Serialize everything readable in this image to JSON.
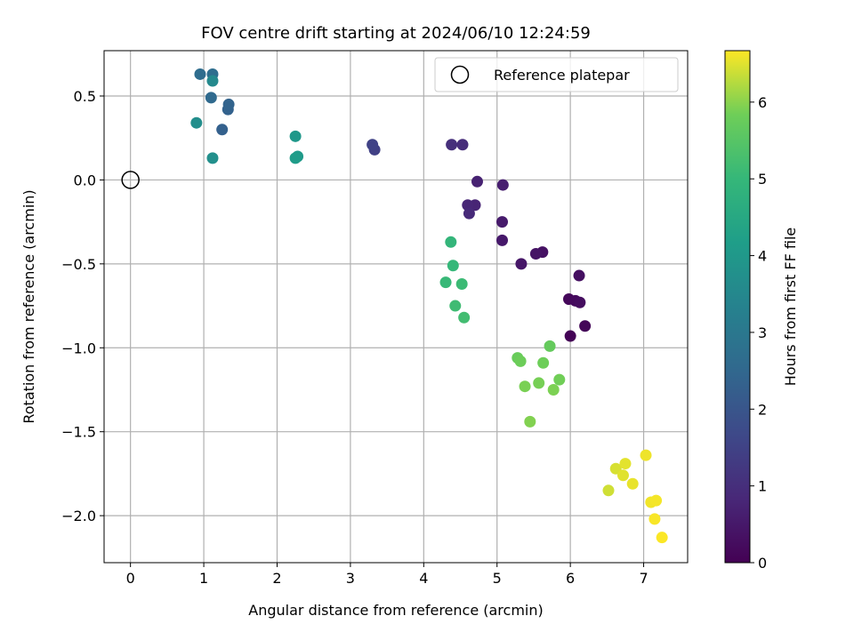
{
  "chart_data": {
    "type": "scatter",
    "title": "FOV centre drift starting at 2024/06/10 12:24:59",
    "xlabel": "Angular distance from reference (arcmin)",
    "ylabel": "Rotation from reference (arcmin)",
    "xlim": [
      -0.36,
      7.6
    ],
    "ylim": [
      -2.28,
      0.77
    ],
    "x_ticks": [
      0,
      1,
      2,
      3,
      4,
      5,
      6,
      7
    ],
    "y_ticks": [
      -2.0,
      -1.5,
      -1.0,
      -0.5,
      0.0,
      0.5
    ],
    "x_tick_labels": [
      "0",
      "1",
      "2",
      "3",
      "4",
      "5",
      "6",
      "7"
    ],
    "y_tick_labels": [
      "−2.0",
      "−1.5",
      "−1.0",
      "−0.5",
      "0.0",
      "0.5"
    ],
    "grid": true,
    "legend": {
      "placement": "top-right",
      "entries": [
        "Reference platepar"
      ]
    },
    "reference_point": {
      "x": 0.0,
      "y": 0.0,
      "label": "Reference platepar",
      "marker": "open-circle"
    },
    "colorbar": {
      "label": "Hours from first FF file",
      "range": [
        0,
        6.67
      ],
      "ticks": [
        0,
        1,
        2,
        3,
        4,
        5,
        6
      ],
      "tick_labels": [
        "0",
        "1",
        "2",
        "3",
        "4",
        "5",
        "6"
      ],
      "colormap": "viridis"
    },
    "points": [
      {
        "x": 6.0,
        "y": -0.93,
        "c": 0.05
      },
      {
        "x": 6.2,
        "y": -0.87,
        "c": 0.1
      },
      {
        "x": 5.98,
        "y": -0.71,
        "c": 0.15
      },
      {
        "x": 6.07,
        "y": -0.72,
        "c": 0.2
      },
      {
        "x": 6.13,
        "y": -0.73,
        "c": 0.25
      },
      {
        "x": 6.12,
        "y": -0.57,
        "c": 0.3
      },
      {
        "x": 5.62,
        "y": -0.43,
        "c": 0.35
      },
      {
        "x": 5.53,
        "y": -0.44,
        "c": 0.4
      },
      {
        "x": 5.33,
        "y": -0.5,
        "c": 0.45
      },
      {
        "x": 5.07,
        "y": -0.36,
        "c": 0.5
      },
      {
        "x": 5.07,
        "y": -0.25,
        "c": 0.55
      },
      {
        "x": 5.08,
        "y": -0.03,
        "c": 0.62
      },
      {
        "x": 4.73,
        "y": -0.01,
        "c": 0.7
      },
      {
        "x": 4.7,
        "y": -0.15,
        "c": 0.76
      },
      {
        "x": 4.6,
        "y": -0.15,
        "c": 0.82
      },
      {
        "x": 4.62,
        "y": -0.2,
        "c": 0.88
      },
      {
        "x": 4.53,
        "y": 0.21,
        "c": 0.95
      },
      {
        "x": 4.38,
        "y": 0.21,
        "c": 1.0
      },
      {
        "x": 3.33,
        "y": 0.18,
        "c": 1.45
      },
      {
        "x": 3.3,
        "y": 0.21,
        "c": 1.5
      },
      {
        "x": 1.25,
        "y": 0.3,
        "c": 2.3
      },
      {
        "x": 1.33,
        "y": 0.42,
        "c": 2.35
      },
      {
        "x": 1.34,
        "y": 0.45,
        "c": 2.4
      },
      {
        "x": 1.1,
        "y": 0.49,
        "c": 2.55
      },
      {
        "x": 0.95,
        "y": 0.63,
        "c": 2.65
      },
      {
        "x": 1.12,
        "y": 0.63,
        "c": 2.7
      },
      {
        "x": 1.12,
        "y": 0.59,
        "c": 3.55
      },
      {
        "x": 0.9,
        "y": 0.34,
        "c": 3.7
      },
      {
        "x": 1.12,
        "y": 0.13,
        "c": 3.75
      },
      {
        "x": 2.25,
        "y": 0.26,
        "c": 4.0
      },
      {
        "x": 2.28,
        "y": 0.14,
        "c": 4.05
      },
      {
        "x": 2.25,
        "y": 0.13,
        "c": 4.1
      },
      {
        "x": 4.37,
        "y": -0.37,
        "c": 4.95
      },
      {
        "x": 4.4,
        "y": -0.51,
        "c": 5.0
      },
      {
        "x": 4.3,
        "y": -0.61,
        "c": 5.05
      },
      {
        "x": 4.52,
        "y": -0.62,
        "c": 5.1
      },
      {
        "x": 4.43,
        "y": -0.75,
        "c": 5.15
      },
      {
        "x": 4.55,
        "y": -0.82,
        "c": 5.2
      },
      {
        "x": 5.72,
        "y": -0.99,
        "c": 5.7
      },
      {
        "x": 5.28,
        "y": -1.06,
        "c": 5.75
      },
      {
        "x": 5.32,
        "y": -1.08,
        "c": 5.8
      },
      {
        "x": 5.63,
        "y": -1.09,
        "c": 5.82
      },
      {
        "x": 5.85,
        "y": -1.19,
        "c": 5.85
      },
      {
        "x": 5.57,
        "y": -1.21,
        "c": 5.88
      },
      {
        "x": 5.38,
        "y": -1.23,
        "c": 5.9
      },
      {
        "x": 5.77,
        "y": -1.25,
        "c": 5.92
      },
      {
        "x": 5.45,
        "y": -1.44,
        "c": 5.95
      },
      {
        "x": 6.52,
        "y": -1.85,
        "c": 6.4
      },
      {
        "x": 6.62,
        "y": -1.72,
        "c": 6.45
      },
      {
        "x": 6.72,
        "y": -1.76,
        "c": 6.5
      },
      {
        "x": 6.75,
        "y": -1.69,
        "c": 6.52
      },
      {
        "x": 6.85,
        "y": -1.81,
        "c": 6.55
      },
      {
        "x": 7.03,
        "y": -1.64,
        "c": 6.58
      },
      {
        "x": 7.1,
        "y": -1.92,
        "c": 6.6
      },
      {
        "x": 7.17,
        "y": -1.91,
        "c": 6.62
      },
      {
        "x": 7.15,
        "y": -2.02,
        "c": 6.64
      },
      {
        "x": 7.25,
        "y": -2.13,
        "c": 6.66
      }
    ]
  }
}
